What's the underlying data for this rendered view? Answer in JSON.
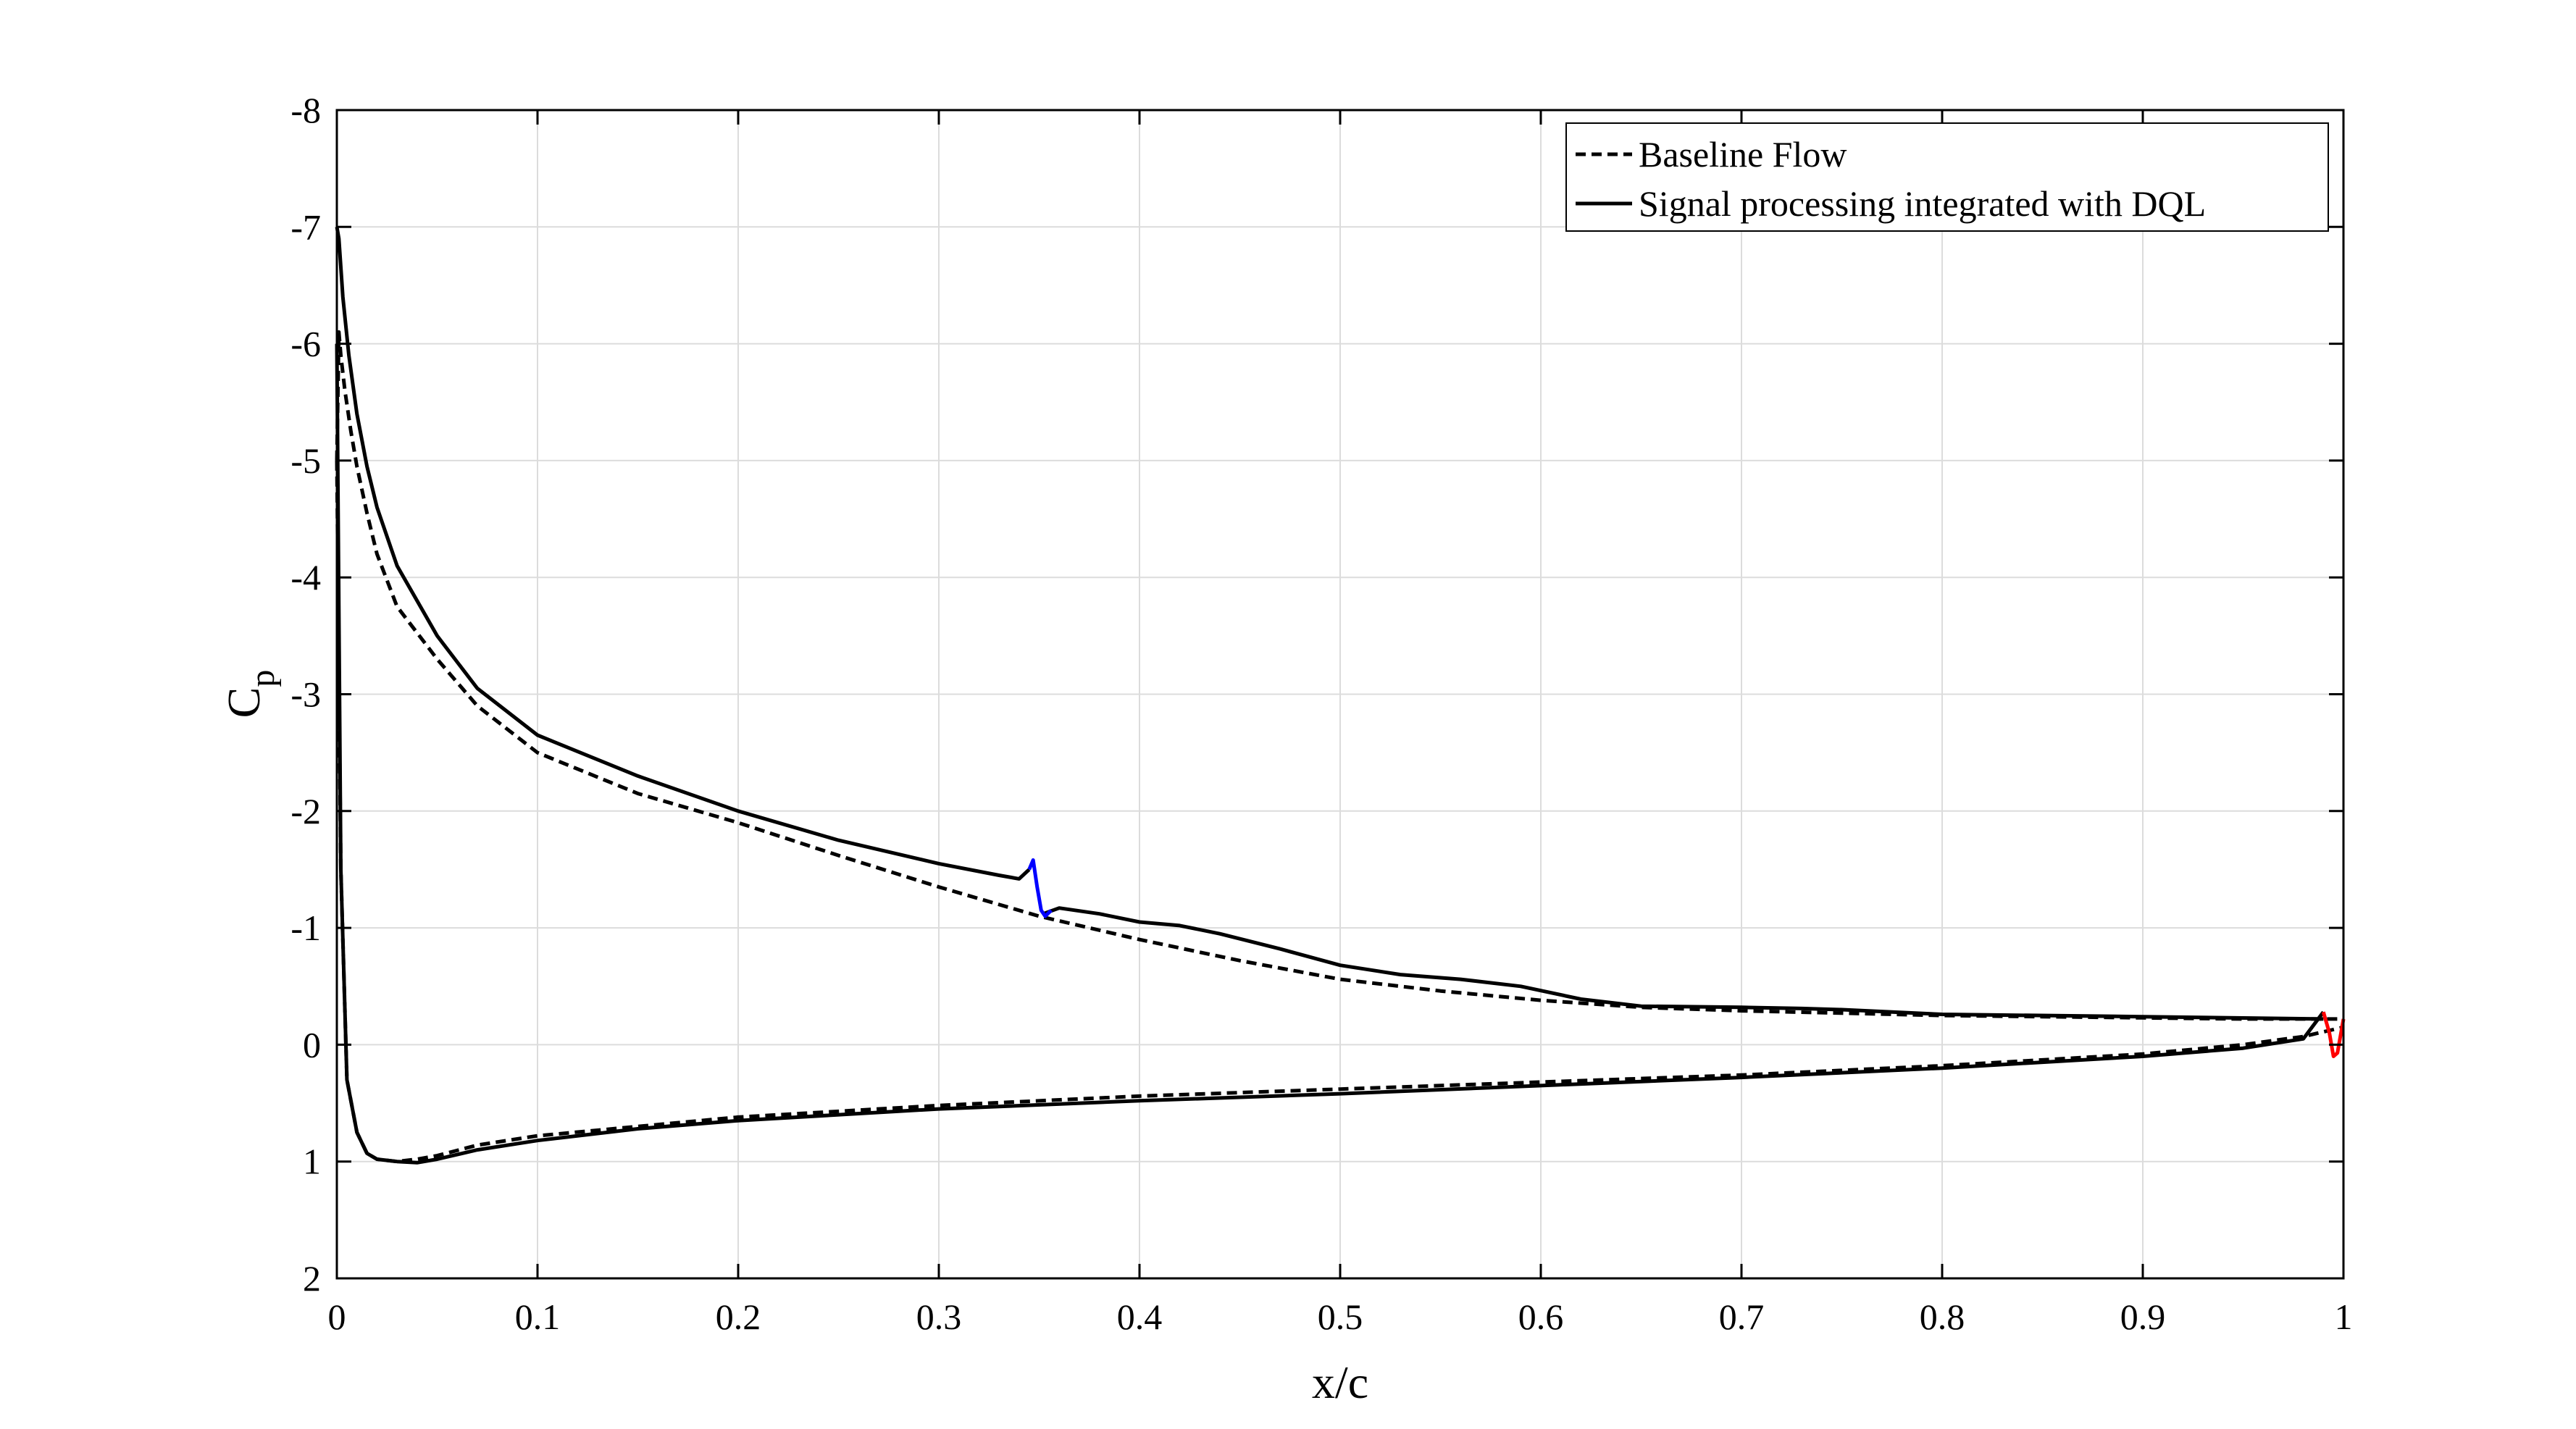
{
  "chart_data": {
    "type": "line",
    "xlabel": "x/c",
    "ylabel": "Cp",
    "xlim": [
      0,
      1
    ],
    "ylim": [
      -8,
      2
    ],
    "y_reversed": true,
    "grid": true,
    "legend_position": "top-right",
    "xticks": [
      "0",
      "0.1",
      "0.2",
      "0.3",
      "0.4",
      "0.5",
      "0.6",
      "0.7",
      "0.8",
      "0.9",
      "1"
    ],
    "yticks": [
      "-8",
      "-7",
      "-6",
      "-5",
      "-4",
      "-3",
      "-2",
      "-1",
      "0",
      "1",
      "2"
    ],
    "series": [
      {
        "name": "Baseline Flow",
        "style": "dashed",
        "color": "#000000",
        "upper": {
          "x": [
            0,
            0.001,
            0.002,
            0.004,
            0.007,
            0.01,
            0.015,
            0.02,
            0.03,
            0.05,
            0.07,
            0.1,
            0.15,
            0.2,
            0.25,
            0.3,
            0.35,
            0.4,
            0.45,
            0.5,
            0.55,
            0.6,
            0.65,
            0.7,
            0.75,
            0.8,
            0.85,
            0.9,
            0.95,
            1.0
          ],
          "y": [
            -5.0,
            -6.1,
            -5.9,
            -5.6,
            -5.25,
            -4.95,
            -4.55,
            -4.2,
            -3.75,
            -3.3,
            -2.9,
            -2.5,
            -2.15,
            -1.9,
            -1.62,
            -1.35,
            -1.1,
            -0.9,
            -0.72,
            -0.56,
            -0.46,
            -0.38,
            -0.32,
            -0.29,
            -0.27,
            -0.25,
            -0.24,
            -0.23,
            -0.22,
            -0.22
          ]
        },
        "lower": {
          "x": [
            0,
            0.002,
            0.005,
            0.01,
            0.015,
            0.02,
            0.03,
            0.04,
            0.05,
            0.07,
            0.1,
            0.15,
            0.2,
            0.3,
            0.4,
            0.5,
            0.6,
            0.7,
            0.8,
            0.9,
            0.95,
            0.98,
            1.0
          ],
          "y": [
            -5.0,
            -1.5,
            0.3,
            0.75,
            0.93,
            0.98,
            1.0,
            0.98,
            0.95,
            0.86,
            0.78,
            0.7,
            0.62,
            0.52,
            0.44,
            0.38,
            0.32,
            0.26,
            0.18,
            0.08,
            0.0,
            -0.07,
            -0.15
          ]
        }
      },
      {
        "name": "Signal processing integrated with DQL",
        "style": "solid",
        "color": "#000000",
        "upper": {
          "x": [
            0,
            0.001,
            0.003,
            0.006,
            0.01,
            0.015,
            0.02,
            0.03,
            0.04,
            0.05,
            0.07,
            0.1,
            0.15,
            0.2,
            0.25,
            0.3,
            0.33,
            0.34,
            0.345
          ],
          "y": [
            -7.0,
            -6.9,
            -6.4,
            -5.9,
            -5.4,
            -4.95,
            -4.6,
            -4.1,
            -3.8,
            -3.5,
            -3.05,
            -2.65,
            -2.3,
            -2.0,
            -1.75,
            -1.55,
            -1.45,
            -1.42,
            -1.5
          ]
        },
        "upper_after_shock": {
          "x": [
            0.352,
            0.36,
            0.38,
            0.4,
            0.42,
            0.44,
            0.47,
            0.5,
            0.53,
            0.56,
            0.59,
            0.62,
            0.65,
            0.7,
            0.73,
            0.75,
            0.8,
            0.9,
            0.99
          ],
          "y": [
            -1.12,
            -1.17,
            -1.12,
            -1.05,
            -1.02,
            -0.95,
            -0.82,
            -0.68,
            -0.6,
            -0.56,
            -0.5,
            -0.39,
            -0.33,
            -0.32,
            -0.31,
            -0.3,
            -0.26,
            -0.24,
            -0.22
          ]
        },
        "lower": {
          "x": [
            0,
            0.002,
            0.005,
            0.01,
            0.015,
            0.02,
            0.03,
            0.04,
            0.05,
            0.07,
            0.1,
            0.15,
            0.2,
            0.3,
            0.4,
            0.5,
            0.6,
            0.7,
            0.8,
            0.9,
            0.95,
            0.98,
            0.99
          ],
          "y": [
            -6.0,
            -1.5,
            0.3,
            0.75,
            0.93,
            0.98,
            1.0,
            1.01,
            0.98,
            0.9,
            0.82,
            0.72,
            0.65,
            0.55,
            0.48,
            0.42,
            0.35,
            0.28,
            0.2,
            0.1,
            0.03,
            -0.05,
            -0.28
          ]
        }
      }
    ],
    "highlights": [
      {
        "color": "#0000ff",
        "x": [
          0.345,
          0.347,
          0.349,
          0.351,
          0.353,
          0.356
        ],
        "y": [
          -1.5,
          -1.58,
          -1.35,
          -1.15,
          -1.1,
          -1.15
        ]
      },
      {
        "color": "#ff0000",
        "x": [
          0.99,
          0.993,
          0.995,
          0.997,
          1.0
        ],
        "y": [
          -0.28,
          -0.1,
          0.1,
          0.07,
          -0.22
        ]
      }
    ]
  }
}
